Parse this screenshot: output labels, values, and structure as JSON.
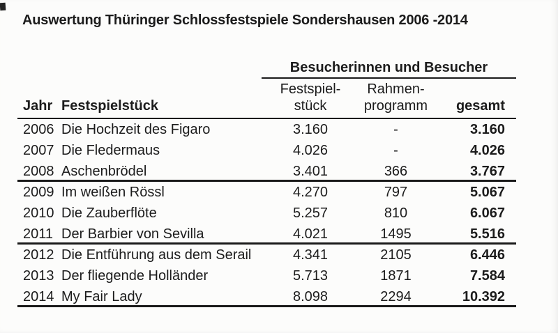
{
  "document": {
    "title": "Auswertung Thüringer Schlossfestspiele Sondershausen 2006 -2014"
  },
  "table": {
    "group_header": "Besucherinnen und Besucher",
    "columns": {
      "year": "Jahr",
      "piece": "Festspielstück",
      "fest_line1": "Festspiel-",
      "fest_line2": "stück",
      "rahmen_line1": "Rahmen-",
      "rahmen_line2": "programm",
      "total": "gesamt"
    },
    "rows": [
      {
        "year": "2006",
        "piece": "Die Hochzeit des Figaro",
        "fest": "3.160",
        "rahmen": "-",
        "total": "3.160"
      },
      {
        "year": "2007",
        "piece": "Die Fledermaus",
        "fest": "4.026",
        "rahmen": "-",
        "total": "4.026"
      },
      {
        "year": "2008",
        "piece": "Aschenbrödel",
        "fest": "3.401",
        "rahmen": "366",
        "total": "3.767"
      },
      {
        "year": "2009",
        "piece": "Im weißen Rössl",
        "fest": "4.270",
        "rahmen": "797",
        "total": "5.067"
      },
      {
        "year": "2010",
        "piece": "Die Zauberflöte",
        "fest": "5.257",
        "rahmen": "810",
        "total": "6.067"
      },
      {
        "year": "2011",
        "piece": "Der Barbier von Sevilla",
        "fest": "4.021",
        "rahmen": "1495",
        "total": "5.516"
      },
      {
        "year": "2012",
        "piece": "Die Entführung aus dem Serail",
        "fest": "4.341",
        "rahmen": "2105",
        "total": "6.446"
      },
      {
        "year": "2013",
        "piece": "Der fliegende Holländer",
        "fest": "5.713",
        "rahmen": "1871",
        "total": "7.584"
      },
      {
        "year": "2014",
        "piece": "My Fair Lady",
        "fest": "8.098",
        "rahmen": "2294",
        "total": "10.392"
      }
    ]
  },
  "colors": {
    "ink": "#1c1c1c",
    "rule_line": "#1a1a1a",
    "paper": "#fcfcfb"
  }
}
